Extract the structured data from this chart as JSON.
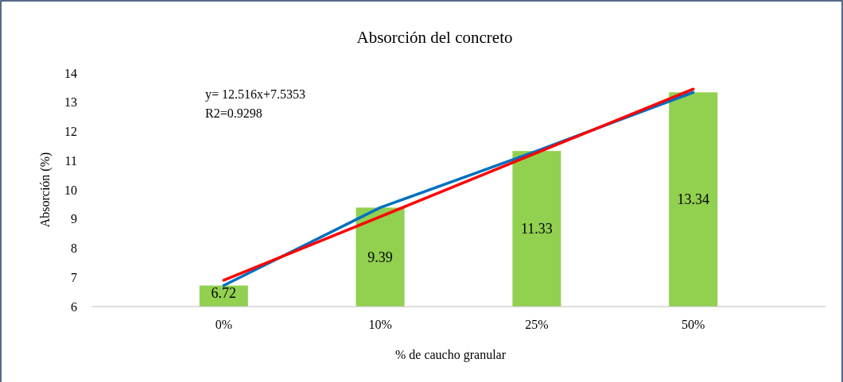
{
  "chart_data": {
    "type": "bar",
    "title": "Absorción del concreto",
    "xlabel": "% de caucho granular",
    "ylabel": "Absorción (%)",
    "categories": [
      "0%",
      "10%",
      "25%",
      "50%"
    ],
    "series": [
      {
        "color": "#92d050",
        "values": [
          6.72,
          9.39,
          11.33,
          13.34
        ],
        "value_labels": [
          "6.72",
          "9.39",
          "11.33",
          "13.34"
        ]
      },
      {
        "type": "line",
        "color": "#0070c0",
        "values": [
          6.72,
          9.39,
          11.33,
          13.34
        ]
      },
      {
        "type": "line",
        "color": "#ff0000",
        "values": [
          6.9,
          9.08,
          11.27,
          13.45
        ]
      }
    ],
    "ylim": [
      6,
      14
    ],
    "yticks": [
      6,
      7,
      8,
      9,
      10,
      11,
      12,
      13,
      14
    ],
    "grid": false,
    "annotations": [
      "y= 12.516x+7.5353",
      "R2=0.9298"
    ]
  }
}
